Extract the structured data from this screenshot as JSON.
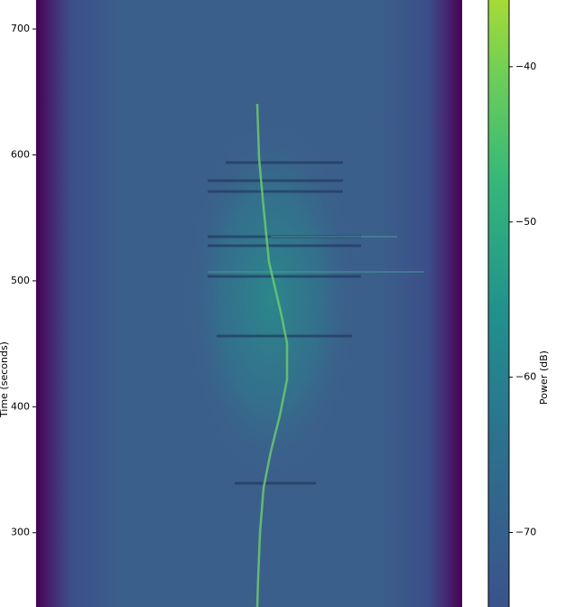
{
  "chart_data": {
    "type": "spectrogram",
    "y_label": "Time (seconds)",
    "ylim": [
      241,
      723
    ],
    "yticks": [
      300,
      400,
      500,
      600,
      700
    ],
    "colormap": "viridis",
    "colorbar_label": "Power (dB)",
    "clim": [
      -74.8,
      -35.7
    ],
    "cticks": [
      {
        "value": -40,
        "label": "−40"
      },
      {
        "value": -50,
        "label": "−50"
      },
      {
        "value": -60,
        "label": "−60"
      },
      {
        "value": -70,
        "label": "−70"
      }
    ]
  }
}
